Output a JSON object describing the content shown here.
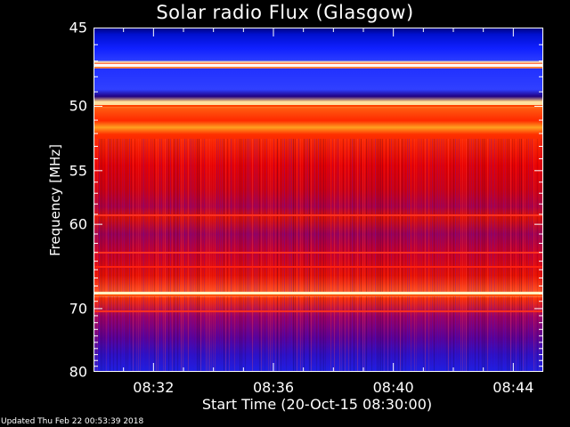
{
  "chart_data": {
    "type": "heatmap",
    "title": "Solar radio Flux (Glasgow)",
    "xlabel": "Start Time (20-Oct-15 08:30:00)",
    "ylabel": "Frequency [MHz]",
    "x_ticks": [
      {
        "label": "08:32",
        "minutes": 2
      },
      {
        "label": "08:36",
        "minutes": 6
      },
      {
        "label": "08:40",
        "minutes": 10
      },
      {
        "label": "08:44",
        "minutes": 14
      }
    ],
    "y_ticks": [
      {
        "label": "45",
        "mhz": 45
      },
      {
        "label": "50",
        "mhz": 50
      },
      {
        "label": "55",
        "mhz": 55
      },
      {
        "label": "60",
        "mhz": 60
      },
      {
        "label": "70",
        "mhz": 70
      },
      {
        "label": "80",
        "mhz": 80
      }
    ],
    "xlim_minutes": [
      0,
      15
    ],
    "ylim_mhz": [
      45,
      80
    ],
    "colors": {
      "background": "#000000",
      "axes": "#ffffff",
      "text": "#ffffff"
    }
  },
  "footer": "Updated Thu Feb 22 00:53:39 2018"
}
